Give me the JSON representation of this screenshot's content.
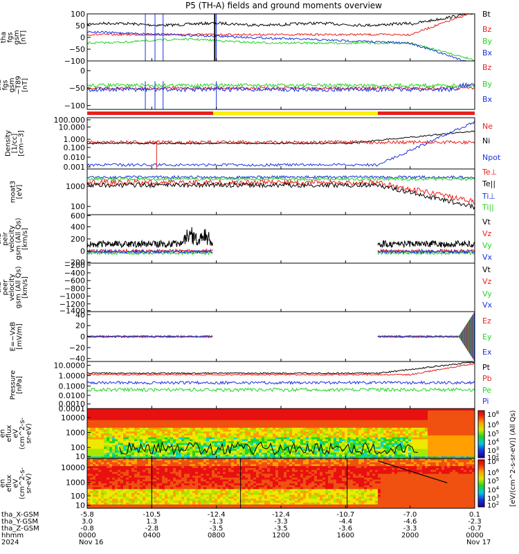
{
  "title": "P5 (TH-A) fields and ground moments overview",
  "colors": {
    "black": "#000000",
    "red": "#e8201c",
    "green": "#22d422",
    "blue": "#1a2fe0",
    "yellow": "#ffee00",
    "wave_green": "#22b822"
  },
  "chart_data": {
    "type": "line",
    "x_axis": {
      "time_ticks": [
        "0000",
        "0400",
        "0800",
        "1200",
        "1600",
        "2000",
        "0000"
      ],
      "day_labels": [
        "Nov 16",
        "Nov 17"
      ],
      "orbit_rows": [
        {
          "label": "tha_X-GSM",
          "values": [
            "-5.8",
            "-10.5",
            "-12.4",
            "-12.4",
            "-10.7",
            "-7.0",
            "0.1"
          ]
        },
        {
          "label": "tha_Y-GSM",
          "values": [
            "3.0",
            "1.3",
            "-1.3",
            "-3.3",
            "-4.4",
            "-4.6",
            "-2.3"
          ]
        },
        {
          "label": "tha_Z-GSM",
          "values": [
            "-0.8",
            "-2.8",
            "-3.5",
            "-3.5",
            "-3.6",
            "-3.3",
            "-0.7"
          ]
        },
        {
          "label": "hhmm",
          "values": []
        },
        {
          "label": "2024",
          "values": []
        }
      ]
    },
    "panels": [
      {
        "id": "fgs",
        "ylabel": [
          "tha",
          "fgs",
          "gsm",
          "[nT]"
        ],
        "ylim": [
          -100,
          100
        ],
        "yticks": [
          "100",
          "50",
          "0",
          "−50",
          "−100"
        ],
        "legend": [
          {
            "text": "Bt",
            "color": "#000000"
          },
          {
            "text": "Bz",
            "color": "#e8201c"
          },
          {
            "text": "By",
            "color": "#22d422"
          },
          {
            "text": "Bx",
            "color": "#1a2fe0"
          }
        ]
      },
      {
        "id": "fgs_dt",
        "ylabel": [
          "tha",
          "fgs",
          "gsm",
          "−T89",
          "[nT]"
        ],
        "ylim": [
          -120,
          20
        ],
        "yticks": [
          "0",
          "−50",
          "−100"
        ],
        "legend": [
          {
            "text": "Bz",
            "color": "#e8201c"
          },
          {
            "text": "By",
            "color": "#22d422"
          },
          {
            "text": "Bx",
            "color": "#1a2fe0"
          }
        ]
      },
      {
        "id": "density",
        "ylabel": [
          "Density",
          "[1/cc]",
          "[cm−3]"
        ],
        "ylim": [
          0.0005,
          300
        ],
        "log": true,
        "yticks": [
          "100.000",
          "10.000",
          "1.000",
          "0.100",
          "0.010",
          "0.001"
        ],
        "legend": [
          {
            "text": "Ne",
            "color": "#e8201c"
          },
          {
            "text": "Ni",
            "color": "#000000"
          },
          {
            "text": "Npot",
            "color": "#1a2fe0"
          }
        ]
      },
      {
        "id": "temperature",
        "ylabel": [
          "moat3",
          "[eV]"
        ],
        "ylim": [
          40,
          8000
        ],
        "log": true,
        "yticks": [
          "1000",
          "100"
        ],
        "legend": [
          {
            "text": "Te⊥",
            "color": "#e8201c"
          },
          {
            "text": "Te||",
            "color": "#000000"
          },
          {
            "text": "Ti⊥",
            "color": "#1a2fe0"
          },
          {
            "text": "Ti||",
            "color": "#22d422"
          }
        ]
      },
      {
        "id": "peir_v",
        "ylabel": [
          "tha",
          "peir",
          "velocity",
          "gsm (All Qs)",
          "[km/s]"
        ],
        "ylim": [
          -200,
          620
        ],
        "yticks": [
          "600",
          "400",
          "200",
          "0",
          "−200"
        ],
        "legend": [
          {
            "text": "Vt",
            "color": "#000000"
          },
          {
            "text": "Vz",
            "color": "#e8201c"
          },
          {
            "text": "Vy",
            "color": "#22d422"
          },
          {
            "text": "Vx",
            "color": "#1a2fe0"
          }
        ]
      },
      {
        "id": "peer_v",
        "ylabel": [
          "tha",
          "peer",
          "velocity",
          "gsm (All Qs)",
          "[km/s]"
        ],
        "ylim": [
          -1450,
          -150
        ],
        "yticks": [
          "−200",
          "−400",
          "−600",
          "−800",
          "−1000",
          "−1200",
          "−1400"
        ],
        "legend": [
          {
            "text": "Vt",
            "color": "#000000"
          },
          {
            "text": "Vz",
            "color": "#e8201c"
          },
          {
            "text": "Vy",
            "color": "#22d422"
          },
          {
            "text": "Vx",
            "color": "#1a2fe0"
          }
        ]
      },
      {
        "id": "efield",
        "ylabel": [
          "E=−VxB",
          "[mV/m]"
        ],
        "ylim": [
          -45,
          45
        ],
        "yticks": [
          "40",
          "20",
          "0",
          "−20",
          "−40"
        ],
        "legend": [
          {
            "text": "Ez",
            "color": "#e8201c"
          },
          {
            "text": "Ey",
            "color": "#22d422"
          },
          {
            "text": "Ex",
            "color": "#1a2fe0"
          }
        ]
      },
      {
        "id": "pressure",
        "ylabel": [
          "Pressure",
          "[nPa]"
        ],
        "ylim": [
          0.0001,
          15
        ],
        "log": true,
        "yticks": [
          "10.0000",
          "1.0000",
          "0.1000",
          "0.0100",
          "0.0010",
          "0.0001"
        ],
        "legend": [
          {
            "text": "Pt",
            "color": "#000000"
          },
          {
            "text": "Pb",
            "color": "#e8201c"
          },
          {
            "text": "Pe",
            "color": "#22d422"
          },
          {
            "text": "Pi",
            "color": "#1a2fe0"
          }
        ]
      },
      {
        "id": "peir_flux",
        "ylabel": [
          "tha",
          "peir",
          "en",
          "eflux",
          "eV",
          "(cm^2-s-",
          "sr-eV)"
        ],
        "yticks": [
          "10000",
          "1000",
          "100",
          "10"
        ],
        "type": "heatmap"
      },
      {
        "id": "peer_flux",
        "ylabel": [
          "tha",
          "peer",
          "en",
          "eflux",
          "eV",
          "(cm^2-s-",
          "sr-eV)"
        ],
        "yticks": [
          "10000",
          "1000",
          "100",
          "10"
        ],
        "type": "heatmap"
      }
    ],
    "colorbar": {
      "label": "[eV/(cm^2-s-sr-eV)] (All Qs)",
      "ticks": [
        {
          "base": "10",
          "exp": "8"
        },
        {
          "base": "10",
          "exp": "6"
        },
        {
          "base": "10",
          "exp": "5"
        },
        {
          "base": "10",
          "exp": "4"
        },
        {
          "base": "10",
          "exp": "3"
        },
        {
          "base": "10",
          "exp": "2"
        }
      ],
      "ticks2": [
        {
          "base": "10",
          "exp": "8"
        },
        {
          "base": "10",
          "exp": "6"
        },
        {
          "base": "10",
          "exp": "5"
        },
        {
          "base": "10",
          "exp": "4"
        },
        {
          "base": "10",
          "exp": "3"
        },
        {
          "base": "10",
          "exp": "2"
        }
      ]
    },
    "mode_bar": [
      {
        "from": 0,
        "to": 7.8,
        "color": "#e8201c"
      },
      {
        "from": 7.8,
        "to": 18.0,
        "color": "#ffee00"
      },
      {
        "from": 18.0,
        "to": 24,
        "color": "#e8201c"
      }
    ]
  }
}
